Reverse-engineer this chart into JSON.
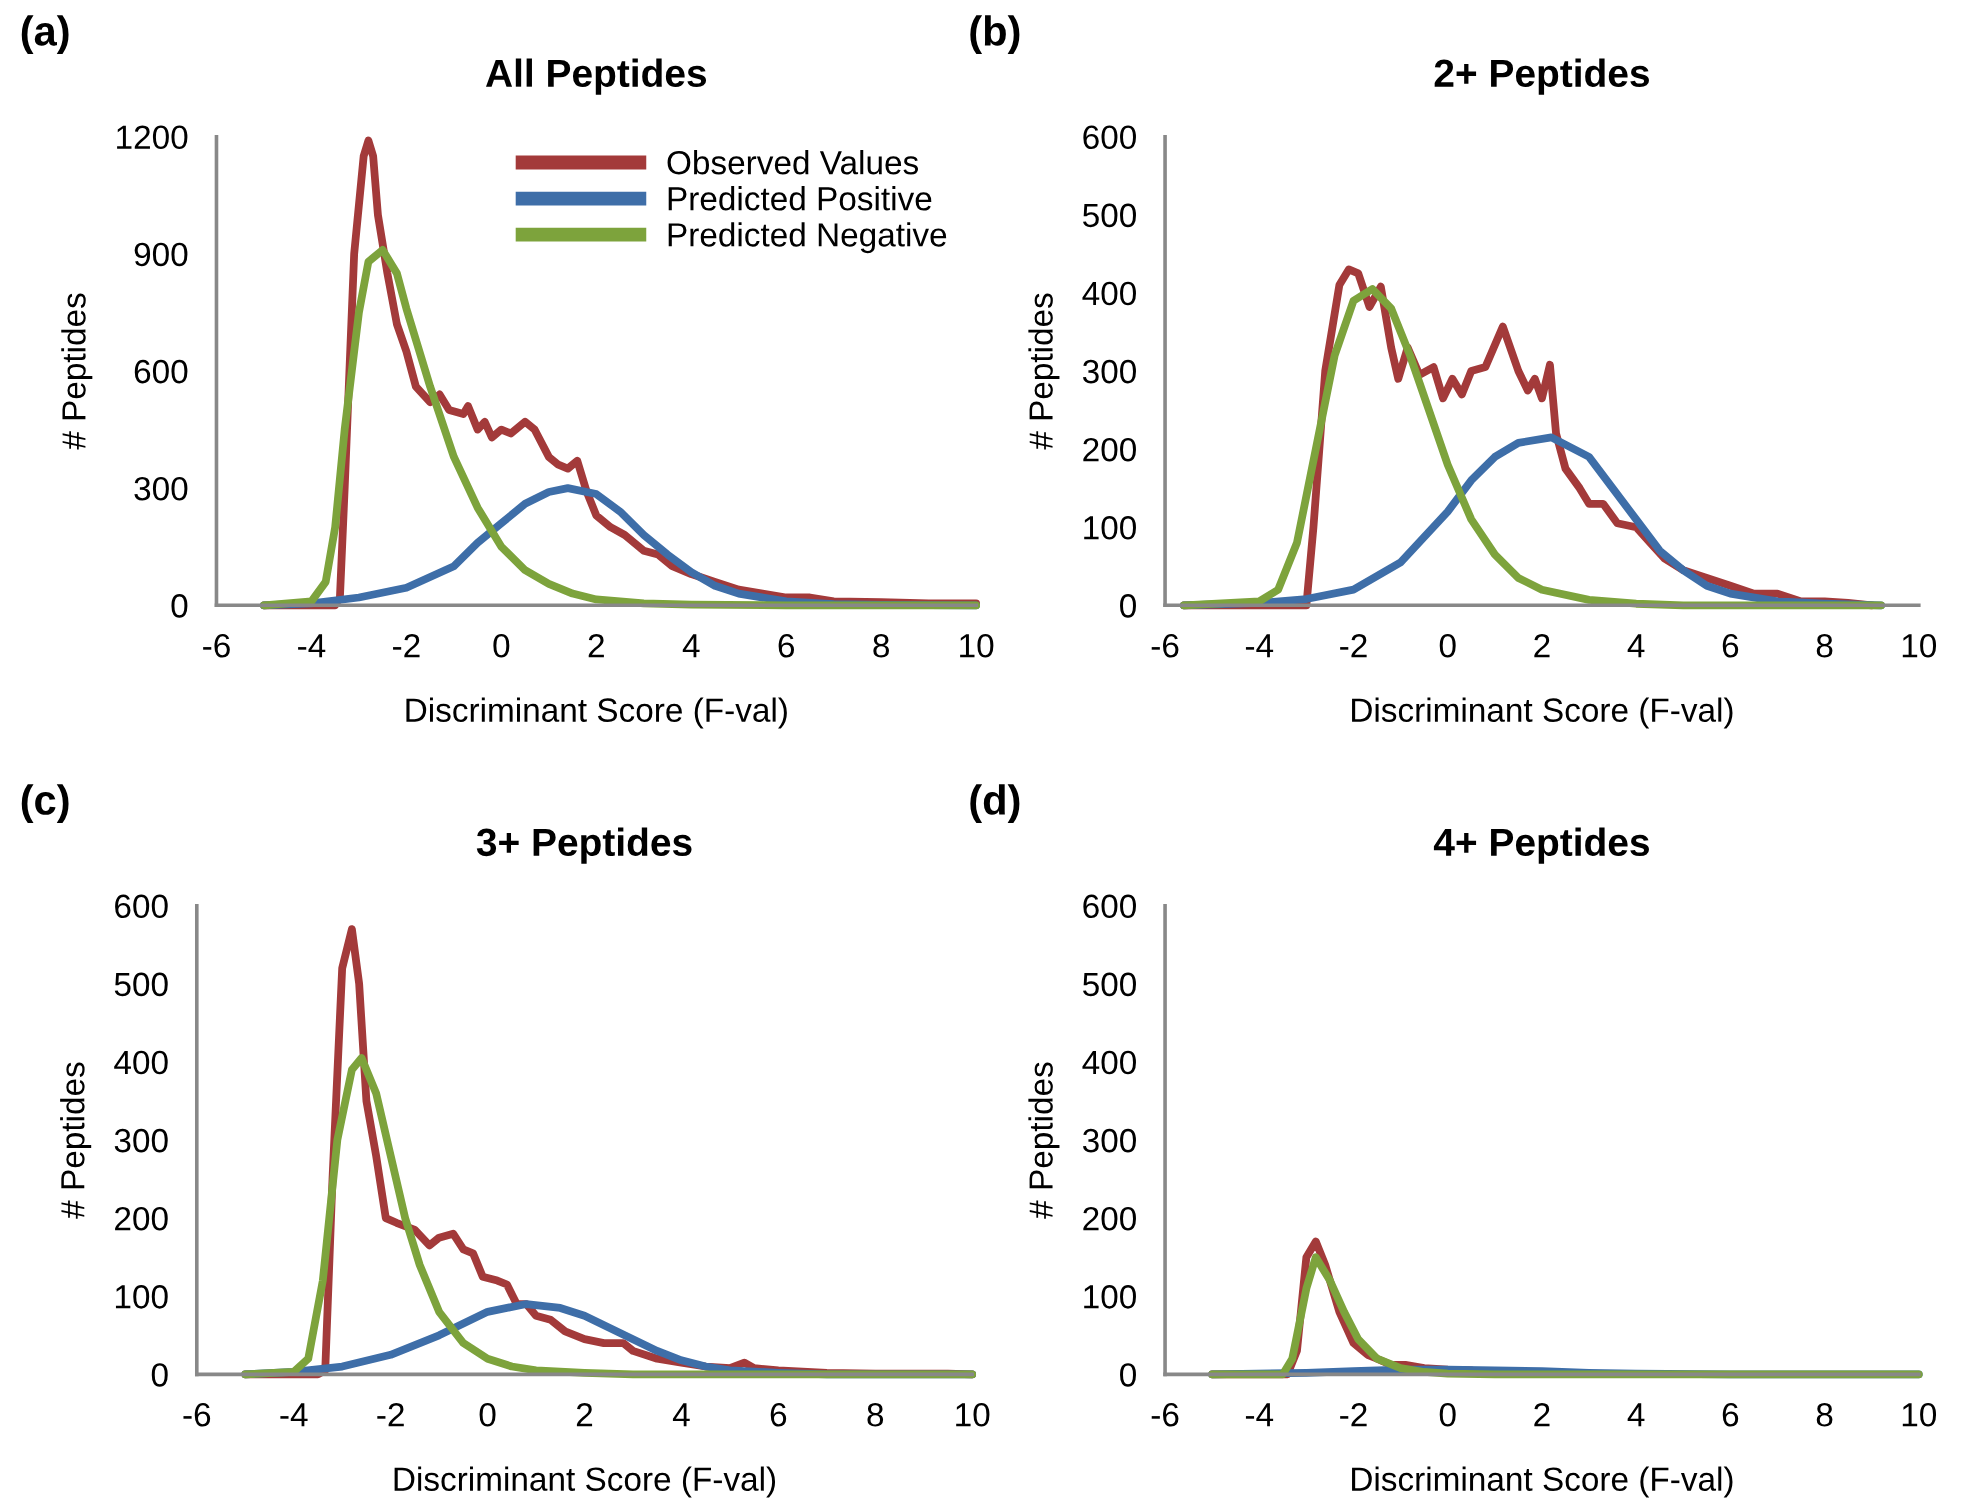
{
  "chart_data": [
    {
      "type": "line",
      "title": "All Peptides",
      "xlabel": "Discriminant Score (F-val)",
      "ylabel": "# Peptides",
      "annotations": [
        "(a)"
      ],
      "xlim": [
        -6,
        10
      ],
      "xticks": [
        -6,
        -4,
        -2,
        0,
        2,
        4,
        6,
        8,
        10
      ],
      "ylim": [
        0,
        1200
      ],
      "yticks": [
        0,
        300,
        600,
        900,
        1200
      ],
      "grid": false,
      "legend": "top right",
      "marker": "none",
      "line_style": "solid",
      "series": [
        {
          "name": "Observed Values",
          "color": "#a33a3a",
          "x": [
            -5,
            -3.5,
            -3.4,
            -3.3,
            -3.1,
            -2.9,
            -2.8,
            -2.7,
            -2.6,
            -2.4,
            -2.2,
            -2.0,
            -1.8,
            -1.5,
            -1.3,
            -1.1,
            -0.8,
            -0.7,
            -0.5,
            -0.35,
            -0.2,
            0,
            0.2,
            0.5,
            0.7,
            1.0,
            1.2,
            1.4,
            1.6,
            1.8,
            2.0,
            2.3,
            2.6,
            3.0,
            3.3,
            3.6,
            4.0,
            4.5,
            5.0,
            5.5,
            6.0,
            6.5,
            7,
            8,
            9,
            10
          ],
          "values": [
            0,
            0,
            20,
            300,
            900,
            1150,
            1190,
            1150,
            1000,
            850,
            720,
            650,
            560,
            520,
            540,
            500,
            490,
            510,
            450,
            470,
            430,
            450,
            440,
            470,
            450,
            380,
            360,
            350,
            370,
            290,
            230,
            200,
            180,
            140,
            130,
            100,
            80,
            60,
            40,
            30,
            20,
            20,
            10,
            8,
            5,
            5
          ]
        },
        {
          "name": "Predicted Positive",
          "color": "#3e6ea8",
          "x": [
            -5,
            -4,
            -3,
            -2,
            -1,
            -0.5,
            0,
            0.5,
            1,
            1.4,
            2,
            2.5,
            3,
            3.5,
            4,
            4.5,
            5,
            6,
            7,
            8,
            10
          ],
          "values": [
            0,
            5,
            20,
            45,
            100,
            160,
            210,
            260,
            290,
            300,
            285,
            240,
            180,
            130,
            85,
            50,
            30,
            10,
            3,
            1,
            0
          ]
        },
        {
          "name": "Predicted Negative",
          "color": "#7da33c",
          "x": [
            -5,
            -4,
            -3.7,
            -3.5,
            -3.3,
            -3.0,
            -2.8,
            -2.5,
            -2.2,
            -2.0,
            -1.5,
            -1.0,
            -0.5,
            0,
            0.5,
            1,
            1.5,
            2,
            3,
            4,
            6,
            10
          ],
          "values": [
            0,
            10,
            60,
            200,
            450,
            750,
            880,
            910,
            850,
            760,
            560,
            380,
            250,
            150,
            90,
            55,
            30,
            15,
            5,
            2,
            0,
            0
          ]
        }
      ]
    },
    {
      "type": "line",
      "title": "2+ Peptides",
      "xlabel": "Discriminant Score (F-val)",
      "ylabel": "# Peptides",
      "annotations": [
        "(b)"
      ],
      "xlim": [
        -6,
        10
      ],
      "xticks": [
        -6,
        -4,
        -2,
        0,
        2,
        4,
        6,
        8,
        10
      ],
      "ylim": [
        0,
        600
      ],
      "yticks": [
        0,
        100,
        200,
        300,
        400,
        500,
        600
      ],
      "grid": false,
      "marker": "none",
      "line_style": "solid",
      "series": [
        {
          "color": "#a33a3a",
          "x": [
            -5.6,
            -4.5,
            -3.0,
            -2.85,
            -2.6,
            -2.3,
            -2.1,
            -1.9,
            -1.66,
            -1.42,
            -1.2,
            -1.05,
            -0.85,
            -0.6,
            -0.3,
            -0.1,
            0.1,
            0.3,
            0.5,
            0.8,
            1.17,
            1.5,
            1.7,
            1.85,
            2.0,
            2.17,
            2.3,
            2.5,
            2.8,
            3.0,
            3.3,
            3.6,
            4.0,
            4.3,
            4.6,
            5.0,
            5.5,
            6.0,
            6.5,
            7.0,
            7.5,
            8,
            8.5,
            9
          ],
          "values": [
            0,
            0,
            0,
            100,
            300,
            410,
            430,
            425,
            382,
            408,
            330,
            290,
            330,
            295,
            305,
            265,
            290,
            270,
            300,
            305,
            357,
            300,
            275,
            290,
            265,
            308,
            220,
            175,
            150,
            130,
            130,
            105,
            100,
            80,
            60,
            45,
            35,
            25,
            15,
            15,
            5,
            5,
            3,
            0
          ]
        },
        {
          "color": "#3e6ea8",
          "x": [
            -5.6,
            -4,
            -3,
            -2,
            -1,
            0,
            0.5,
            1,
            1.5,
            2.2,
            3,
            3.5,
            4,
            4.5,
            5,
            5.5,
            6,
            7,
            8,
            9.2
          ],
          "values": [
            0,
            3,
            8,
            20,
            55,
            120,
            160,
            190,
            208,
            215,
            190,
            150,
            110,
            70,
            45,
            25,
            15,
            5,
            2,
            0
          ]
        },
        {
          "color": "#7da33c",
          "x": [
            -5.6,
            -4,
            -3.6,
            -3.2,
            -2.8,
            -2.4,
            -2.0,
            -1.6,
            -1.2,
            -0.8,
            -0.4,
            0,
            0.5,
            1,
            1.5,
            2,
            3,
            4,
            5,
            9.2
          ],
          "values": [
            0,
            5,
            20,
            80,
            200,
            320,
            390,
            405,
            380,
            320,
            250,
            180,
            110,
            65,
            35,
            20,
            7,
            2,
            0,
            0
          ]
        }
      ]
    },
    {
      "type": "line",
      "title": "3+ Peptides",
      "xlabel": "Discriminant Score (F-val)",
      "ylabel": "# Peptides",
      "annotations": [
        "(c)"
      ],
      "xlim": [
        -6,
        10
      ],
      "xticks": [
        -6,
        -4,
        -2,
        0,
        2,
        4,
        6,
        8,
        10
      ],
      "ylim": [
        0,
        600
      ],
      "yticks": [
        0,
        100,
        200,
        300,
        400,
        500,
        600
      ],
      "grid": false,
      "marker": "none",
      "line_style": "solid",
      "series": [
        {
          "color": "#a33a3a",
          "x": [
            -5,
            -3.5,
            -3.35,
            -3.2,
            -3.0,
            -2.8,
            -2.65,
            -2.5,
            -2.3,
            -2.1,
            -1.88,
            -1.5,
            -1.2,
            -1.0,
            -0.71,
            -0.5,
            -0.3,
            -0.1,
            0.2,
            0.4,
            0.6,
            0.8,
            1.0,
            1.3,
            1.6,
            2.0,
            2.4,
            2.8,
            3.0,
            3.5,
            4.0,
            4.5,
            5.0,
            5.3,
            5.5,
            6,
            7,
            8,
            9.5,
            10
          ],
          "values": [
            0,
            0,
            5,
            250,
            520,
            570,
            500,
            350,
            280,
            200,
            194,
            185,
            165,
            175,
            180,
            160,
            155,
            125,
            120,
            115,
            90,
            90,
            75,
            70,
            55,
            45,
            40,
            40,
            30,
            20,
            15,
            10,
            8,
            15,
            8,
            5,
            2,
            1,
            1,
            0
          ]
        },
        {
          "color": "#3e6ea8",
          "x": [
            -5,
            -4,
            -3,
            -2,
            -1,
            0,
            0.8,
            1.5,
            2,
            2.5,
            3,
            3.5,
            4,
            4.5,
            5,
            6,
            7,
            10
          ],
          "values": [
            0,
            3,
            10,
            25,
            50,
            80,
            90,
            85,
            75,
            60,
            45,
            30,
            18,
            10,
            5,
            2,
            0,
            0
          ]
        },
        {
          "color": "#7da33c",
          "x": [
            -5,
            -4,
            -3.7,
            -3.4,
            -3.1,
            -2.8,
            -2.6,
            -2.3,
            -2.0,
            -1.7,
            -1.4,
            -1,
            -0.5,
            0,
            0.5,
            1,
            2,
            3,
            10
          ],
          "values": [
            0,
            3,
            20,
            120,
            300,
            390,
            405,
            360,
            280,
            200,
            140,
            80,
            40,
            20,
            10,
            5,
            2,
            0,
            0
          ]
        }
      ]
    },
    {
      "type": "line",
      "title": "4+ Peptides",
      "xlabel": "Discriminant Score (F-val)",
      "ylabel": "# Peptides",
      "annotations": [
        "(d)"
      ],
      "xlim": [
        -6,
        10
      ],
      "xticks": [
        -6,
        -4,
        -2,
        0,
        2,
        4,
        6,
        8,
        10
      ],
      "ylim": [
        0,
        600
      ],
      "yticks": [
        0,
        100,
        200,
        300,
        400,
        500,
        600
      ],
      "grid": false,
      "marker": "none",
      "line_style": "solid",
      "series": [
        {
          "color": "#a33a3a",
          "x": [
            -5,
            -3.4,
            -3.2,
            -3.0,
            -2.8,
            -2.6,
            -2.3,
            -2.0,
            -1.7,
            -1.5,
            -1.2,
            -0.9,
            -0.5,
            0,
            0.5
          ],
          "values": [
            0,
            0,
            30,
            150,
            170,
            140,
            80,
            40,
            25,
            20,
            12,
            12,
            8,
            6,
            5
          ]
        },
        {
          "color": "#3e6ea8",
          "x": [
            -5,
            -3,
            -2,
            -1,
            0,
            1,
            2,
            3,
            4,
            6,
            10
          ],
          "values": [
            0,
            2,
            4,
            6,
            6,
            5,
            4,
            2,
            1,
            0,
            0
          ]
        },
        {
          "color": "#7da33c",
          "x": [
            -5,
            -3.5,
            -3.3,
            -3.0,
            -2.8,
            -2.5,
            -2.2,
            -1.9,
            -1.5,
            -1,
            -0.5,
            0,
            1,
            10
          ],
          "values": [
            0,
            0,
            20,
            110,
            150,
            120,
            80,
            45,
            20,
            8,
            3,
            1,
            0,
            0
          ]
        }
      ]
    }
  ]
}
